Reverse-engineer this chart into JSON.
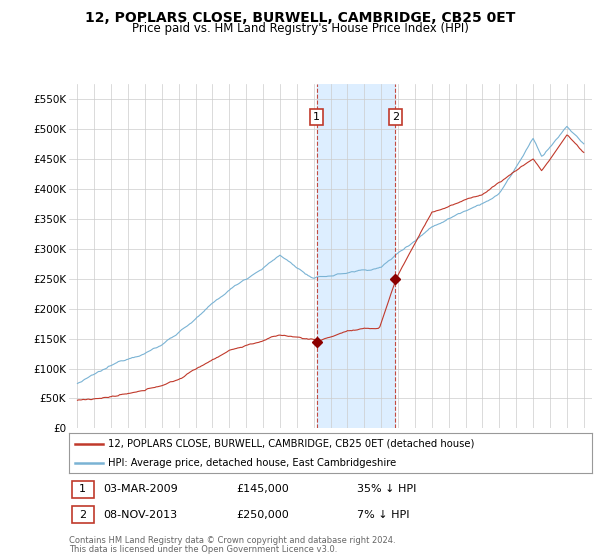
{
  "title": "12, POPLARS CLOSE, BURWELL, CAMBRIDGE, CB25 0ET",
  "subtitle": "Price paid vs. HM Land Registry's House Price Index (HPI)",
  "legend_line1": "12, POPLARS CLOSE, BURWELL, CAMBRIDGE, CB25 0ET (detached house)",
  "legend_line2": "HPI: Average price, detached house, East Cambridgeshire",
  "footer1": "Contains HM Land Registry data © Crown copyright and database right 2024.",
  "footer2": "This data is licensed under the Open Government Licence v3.0.",
  "sale1_date": "03-MAR-2009",
  "sale1_price": "£145,000",
  "sale1_hpi": "35% ↓ HPI",
  "sale2_date": "08-NOV-2013",
  "sale2_price": "£250,000",
  "sale2_hpi": "7% ↓ HPI",
  "hpi_color": "#7ab3d4",
  "price_color": "#c0392b",
  "sale_marker_color": "#8b0000",
  "vline_color": "#c0392b",
  "shade_color": "#ddeeff",
  "ylim_max": 575000,
  "ylabel_ticks": [
    0,
    50000,
    100000,
    150000,
    200000,
    250000,
    300000,
    350000,
    400000,
    450000,
    500000,
    550000
  ],
  "sale1_year": 2009.17,
  "sale2_year": 2013.84
}
